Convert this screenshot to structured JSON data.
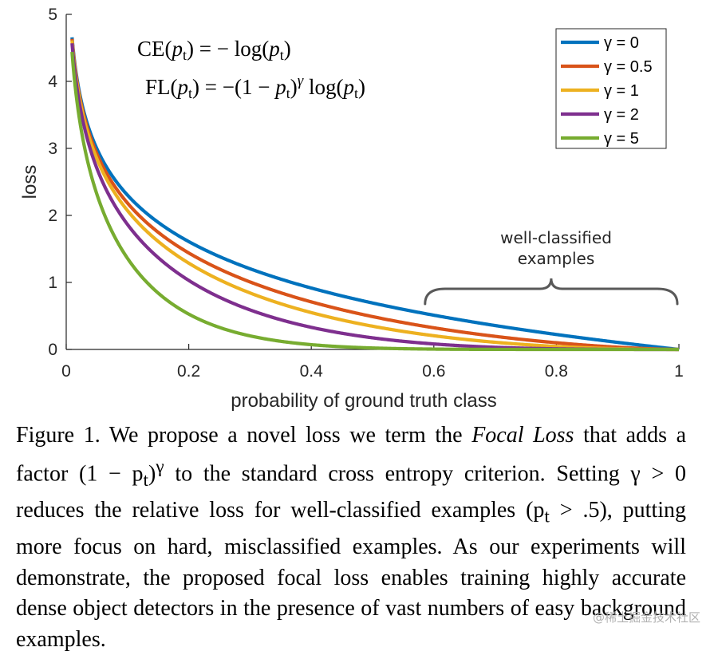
{
  "chart_data": {
    "type": "line",
    "xlabel": "probability of ground truth class",
    "ylabel": "loss",
    "xlim": [
      0,
      1
    ],
    "ylim": [
      0,
      5
    ],
    "xticks": [
      "0",
      "0.2",
      "0.4",
      "0.6",
      "0.8",
      "1"
    ],
    "yticks": [
      "0",
      "1",
      "2",
      "3",
      "4",
      "5"
    ],
    "grid": false,
    "legend_position": "top-right",
    "x": [
      0.01,
      0.02,
      0.03,
      0.05,
      0.07,
      0.1,
      0.15,
      0.2,
      0.25,
      0.3,
      0.35,
      0.4,
      0.45,
      0.5,
      0.55,
      0.6,
      0.65,
      0.7,
      0.75,
      0.8,
      0.85,
      0.9,
      0.95,
      1.0
    ],
    "series": [
      {
        "name": "γ = 0",
        "color": "#0072bd",
        "values": [
          4.605,
          3.912,
          3.507,
          2.996,
          2.659,
          2.303,
          1.897,
          1.609,
          1.386,
          1.204,
          1.05,
          0.916,
          0.799,
          0.693,
          0.598,
          0.511,
          0.431,
          0.357,
          0.288,
          0.223,
          0.163,
          0.105,
          0.051,
          0
        ]
      },
      {
        "name": "γ = 0.5",
        "color": "#d95319",
        "values": [
          4.582,
          3.873,
          3.454,
          2.92,
          2.565,
          2.184,
          1.749,
          1.439,
          1.2,
          1.007,
          0.846,
          0.71,
          0.592,
          0.49,
          0.401,
          0.323,
          0.255,
          0.196,
          0.144,
          0.1,
          0.063,
          0.033,
          0.011,
          0
        ]
      },
      {
        "name": "γ = 1",
        "color": "#edb120",
        "values": [
          4.559,
          3.834,
          3.402,
          2.846,
          2.473,
          2.072,
          1.613,
          1.287,
          1.04,
          0.843,
          0.682,
          0.55,
          0.44,
          0.347,
          0.269,
          0.204,
          0.151,
          0.107,
          0.072,
          0.045,
          0.024,
          0.011,
          0.003,
          0
        ]
      },
      {
        "name": "γ = 2",
        "color": "#7e2f8e",
        "values": [
          4.514,
          3.757,
          3.3,
          2.704,
          2.3,
          1.865,
          1.371,
          1.03,
          0.78,
          0.59,
          0.443,
          0.33,
          0.242,
          0.173,
          0.121,
          0.082,
          0.053,
          0.032,
          0.018,
          0.009,
          0.004,
          0.001,
          0,
          0
        ]
      },
      {
        "name": "γ = 5",
        "color": "#77ac30",
        "values": [
          4.38,
          3.536,
          3.014,
          2.322,
          1.849,
          1.36,
          0.842,
          0.527,
          0.329,
          0.202,
          0.121,
          0.071,
          0.04,
          0.022,
          0.011,
          0.005,
          0.002,
          0.001,
          0,
          0,
          0,
          0,
          0,
          0
        ]
      }
    ],
    "annotation": {
      "line1": "well-classified",
      "line2": "examples",
      "x_start": 0.6,
      "x_end": 1.0
    }
  },
  "caption": {
    "p1": "Figure 1. We propose a novel loss we term the ",
    "italic": "Focal Loss",
    "p2": " that adds a factor (1 − p",
    "p2_sub": "t",
    "p2_sup": "γ",
    "p3": " to the standard cross entropy criterion. Setting γ > 0 reduces the relative loss for well-classified examples (p",
    "p3_sub": "t",
    "p4": " > .5), putting more focus on hard, misclassified examples. As our experiments will demonstrate, the proposed focal loss enables training highly accurate dense object detectors in the presence of vast numbers of easy background examples."
  },
  "watermark": "@稀土掘金技术社区"
}
